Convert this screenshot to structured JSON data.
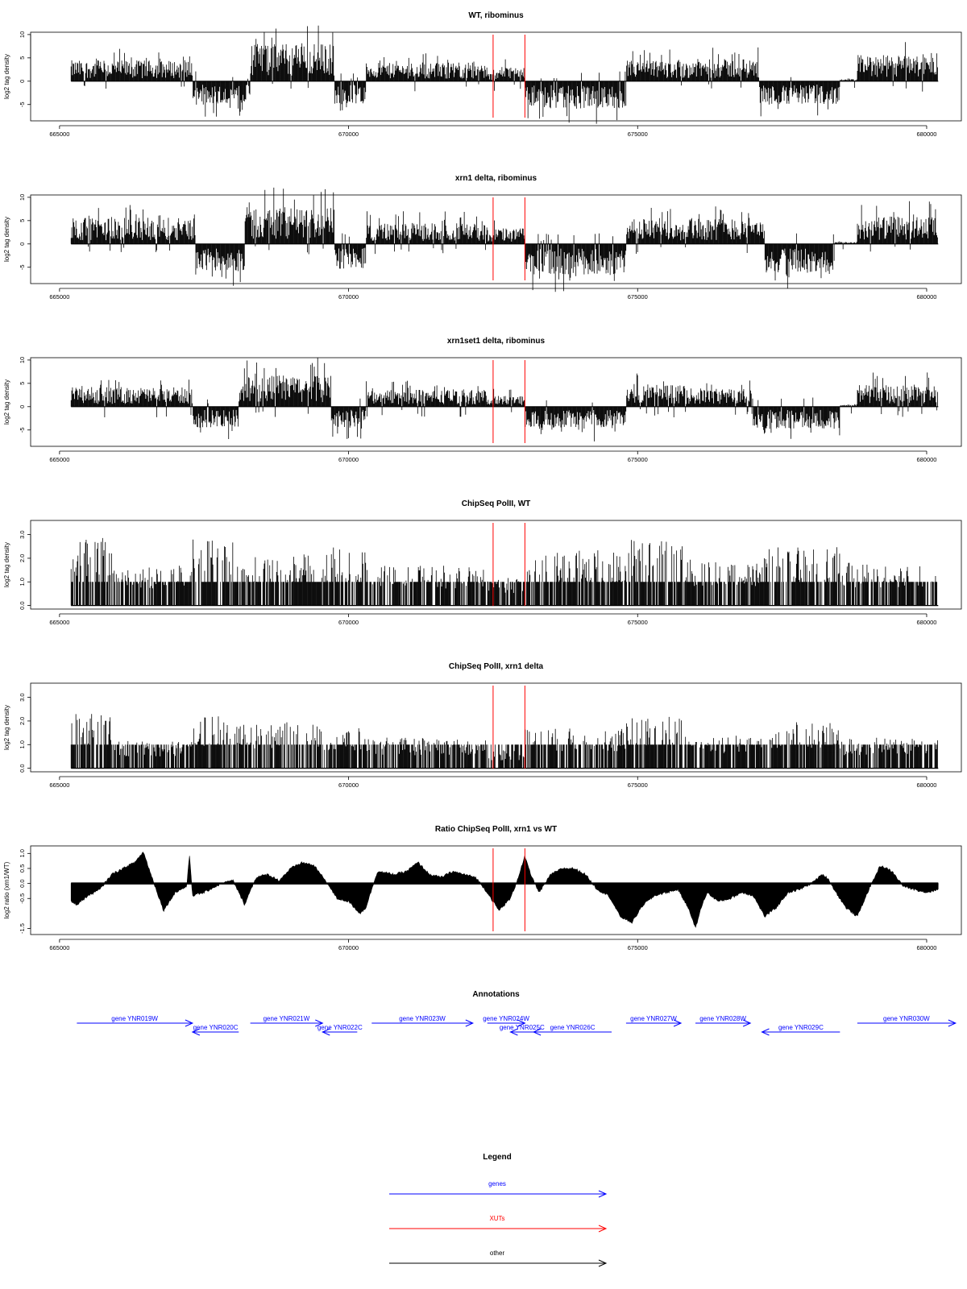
{
  "chart_data": [
    {
      "type": "bar",
      "title": "WT, ribominus",
      "ylabel": "log2 tag density",
      "ylim": [
        -8.5,
        10.5
      ],
      "yticks": [
        10,
        5,
        0,
        -5
      ],
      "xlim": [
        664500,
        680600
      ],
      "xticks": [
        "665000",
        "670000",
        "675000",
        "680000"
      ],
      "x_range": [
        665200,
        680200
      ],
      "markers": [
        672500,
        673050
      ],
      "series": [
        {
          "values": [
            [
              665200,
              667300,
              3.2
            ],
            [
              667300,
              668300,
              -3.6
            ],
            [
              668300,
              669750,
              5.8
            ],
            [
              669750,
              670300,
              -3.6
            ],
            [
              670300,
              672400,
              2.8
            ],
            [
              672400,
              672500,
              1.2
            ],
            [
              672500,
              673050,
              2.2
            ],
            [
              673050,
              674800,
              -4.2
            ],
            [
              674800,
              675800,
              3.2
            ],
            [
              675800,
              677100,
              3.4
            ],
            [
              677100,
              678500,
              -3.6
            ],
            [
              678500,
              678800,
              0.3
            ],
            [
              678800,
              680200,
              4.0
            ]
          ]
        }
      ]
    },
    {
      "type": "bar",
      "title": "xrn1 delta, ribominus",
      "ylabel": "log2 tag density",
      "ylim": [
        -8.5,
        10.5
      ],
      "yticks": [
        10,
        5,
        0,
        -5
      ],
      "xlim": [
        664500,
        680600
      ],
      "xticks": [
        "665000",
        "670000",
        "675000",
        "680000"
      ],
      "x_range": [
        665200,
        680200
      ],
      "markers": [
        672500,
        673050
      ],
      "series": [
        {
          "values": [
            [
              665200,
              667350,
              4.0
            ],
            [
              667350,
              668200,
              -4.2
            ],
            [
              668200,
              669750,
              5.5
            ],
            [
              669750,
              670300,
              -3.8
            ],
            [
              670300,
              672400,
              3.2
            ],
            [
              672400,
              672500,
              1.5
            ],
            [
              672500,
              673050,
              2.4
            ],
            [
              673050,
              674800,
              -4.8
            ],
            [
              674800,
              675800,
              4.0
            ],
            [
              675800,
              677200,
              4.0
            ],
            [
              677200,
              678400,
              -4.5
            ],
            [
              678400,
              678800,
              0.3
            ],
            [
              678800,
              680200,
              4.2
            ]
          ]
        }
      ]
    },
    {
      "type": "bar",
      "title": "xrn1set1 delta, ribominus",
      "ylabel": "log2 tag density",
      "ylim": [
        -8.5,
        10.5
      ],
      "yticks": [
        10,
        5,
        0,
        -5
      ],
      "xlim": [
        664500,
        680600
      ],
      "xticks": [
        "665000",
        "670000",
        "675000",
        "680000"
      ],
      "x_range": [
        665200,
        680200
      ],
      "markers": [
        672500,
        673050
      ],
      "series": [
        {
          "values": [
            [
              665200,
              667300,
              3.0
            ],
            [
              667300,
              668100,
              -3.2
            ],
            [
              668100,
              669700,
              4.8
            ],
            [
              669700,
              670300,
              -3.2
            ],
            [
              670300,
              672400,
              2.6
            ],
            [
              672400,
              672500,
              1.0
            ],
            [
              672500,
              673050,
              1.8
            ],
            [
              673050,
              674800,
              -3.6
            ],
            [
              674800,
              675800,
              3.4
            ],
            [
              675800,
              677000,
              2.8
            ],
            [
              677000,
              678500,
              -3.4
            ],
            [
              678500,
              678800,
              0.3
            ],
            [
              678800,
              680200,
              3.4
            ]
          ]
        }
      ]
    },
    {
      "type": "bar",
      "title": "ChipSeq PolII, WT",
      "ylabel": "log2 tag density",
      "ylim": [
        -0.15,
        3.6
      ],
      "yticks": [
        3.0,
        2.0,
        1.0,
        0.0
      ],
      "xlim": [
        664500,
        680600
      ],
      "xticks": [
        "665000",
        "670000",
        "675000",
        "680000"
      ],
      "x_range": [
        665200,
        680200
      ],
      "markers": [
        672500,
        673050
      ],
      "series": [
        {
          "values": [
            [
              665200,
              665900,
              2.2
            ],
            [
              665900,
              667300,
              1.3
            ],
            [
              667300,
              668100,
              2.2
            ],
            [
              668100,
              669500,
              1.7
            ],
            [
              669500,
              670300,
              1.9
            ],
            [
              670300,
              672400,
              1.3
            ],
            [
              672400,
              673050,
              0.9
            ],
            [
              673050,
              674800,
              1.8
            ],
            [
              674800,
              675800,
              2.2
            ],
            [
              675800,
              677100,
              1.5
            ],
            [
              677100,
              678500,
              1.9
            ],
            [
              678500,
              680200,
              1.4
            ]
          ]
        }
      ]
    },
    {
      "type": "bar",
      "title": "ChipSeq PolII, xrn1 delta",
      "ylabel": "log2 tag density",
      "ylim": [
        -0.15,
        3.6
      ],
      "yticks": [
        3.0,
        2.0,
        1.0,
        0.0
      ],
      "xlim": [
        664500,
        680600
      ],
      "xticks": [
        "665000",
        "670000",
        "675000",
        "680000"
      ],
      "x_range": [
        665200,
        680200
      ],
      "markers": [
        672500,
        673050
      ],
      "series": [
        {
          "values": [
            [
              665200,
              665900,
              1.8
            ],
            [
              665900,
              667300,
              0.9
            ],
            [
              667300,
              668100,
              1.7
            ],
            [
              668100,
              669500,
              1.5
            ],
            [
              669500,
              670300,
              1.3
            ],
            [
              670300,
              672400,
              1.0
            ],
            [
              672400,
              673050,
              0.6
            ],
            [
              673050,
              674800,
              1.3
            ],
            [
              674800,
              675800,
              1.7
            ],
            [
              675800,
              677100,
              1.1
            ],
            [
              677100,
              678500,
              1.5
            ],
            [
              678500,
              680200,
              1.0
            ]
          ]
        }
      ]
    },
    {
      "type": "area",
      "title": "Ratio ChipSeq PolII, xrn1 vs WT",
      "ylabel": "log2 ratio (xrn1/WT)",
      "ylim": [
        -1.7,
        1.25
      ],
      "yticks": [
        1.0,
        0.5,
        0.0,
        -0.5,
        -1.5
      ],
      "xlim": [
        664500,
        680600
      ],
      "xticks": [
        "665000",
        "670000",
        "675000",
        "680000"
      ],
      "x_range": [
        665200,
        680200
      ],
      "markers": [
        672500,
        673050
      ],
      "series": [
        {
          "x": [
            665200,
            665300,
            665500,
            665700,
            665900,
            666100,
            666300,
            666450,
            666600,
            666800,
            667000,
            667200,
            667250,
            667300,
            667500,
            667800,
            668000,
            668200,
            668400,
            668600,
            668800,
            669000,
            669200,
            669400,
            669600,
            669800,
            670000,
            670200,
            670300,
            670500,
            670800,
            671000,
            671200,
            671400,
            671600,
            671800,
            672000,
            672200,
            672400,
            672600,
            672800,
            672900,
            673050,
            673150,
            673300,
            673500,
            673700,
            673900,
            674100,
            674300,
            674500,
            674700,
            674900,
            675100,
            675300,
            675500,
            675700,
            675900,
            676000,
            676100,
            676200,
            676400,
            676600,
            676800,
            677000,
            677200,
            677400,
            677600,
            677800,
            678000,
            678200,
            678300,
            678400,
            678600,
            678800,
            679000,
            679200,
            679400,
            679600,
            679800,
            680000,
            680200
          ],
          "values": [
            -0.6,
            -0.7,
            -0.4,
            -0.2,
            0.3,
            0.5,
            0.7,
            1.05,
            0.2,
            -0.9,
            -0.3,
            -0.1,
            0.95,
            -0.4,
            -0.3,
            0.0,
            0.1,
            -0.7,
            0.2,
            0.3,
            0.1,
            0.5,
            0.7,
            0.6,
            0.1,
            -0.5,
            -0.6,
            -1.0,
            -0.8,
            0.4,
            0.3,
            0.4,
            0.7,
            0.3,
            0.2,
            0.4,
            0.3,
            0.2,
            -0.3,
            -0.9,
            -0.5,
            0.0,
            0.9,
            0.3,
            -0.3,
            0.3,
            0.5,
            0.5,
            0.3,
            -0.2,
            -0.4,
            -1.1,
            -1.3,
            -0.7,
            -0.4,
            -0.3,
            -0.2,
            -0.9,
            -1.5,
            -0.8,
            -0.3,
            -0.6,
            -0.5,
            -0.3,
            -0.4,
            -1.1,
            -0.8,
            -0.3,
            -0.2,
            0.0,
            0.3,
            0.15,
            -0.2,
            -0.8,
            -1.1,
            -0.2,
            0.6,
            0.4,
            -0.1,
            -0.2,
            -0.3,
            -0.2
          ]
        }
      ]
    }
  ],
  "annotations": {
    "title": "Annotations",
    "color": "#0000ff",
    "genes": [
      {
        "label": "gene YNR019W",
        "start": 665300,
        "end": 667300,
        "strand": "+",
        "row": 0
      },
      {
        "label": "gene YNR020C",
        "start": 667300,
        "end": 668100,
        "strand": "-",
        "row": 1
      },
      {
        "label": "gene YNR021W",
        "start": 668300,
        "end": 669550,
        "strand": "+",
        "row": 0
      },
      {
        "label": "gene YNR022C",
        "start": 669550,
        "end": 670150,
        "strand": "-",
        "row": 1
      },
      {
        "label": "gene YNR023W",
        "start": 670400,
        "end": 672150,
        "strand": "+",
        "row": 0
      },
      {
        "label": "gene YNR024W",
        "start": 672400,
        "end": 673050,
        "strand": "+",
        "row": 0
      },
      {
        "label": "gene YNR025C",
        "start": 672800,
        "end": 673200,
        "strand": "-",
        "row": 1
      },
      {
        "label": "gene YNR026C",
        "start": 673200,
        "end": 674550,
        "strand": "-",
        "row": 1
      },
      {
        "label": "gene YNR027W",
        "start": 674800,
        "end": 675750,
        "strand": "+",
        "row": 0
      },
      {
        "label": "gene YNR028W",
        "start": 676000,
        "end": 676950,
        "strand": "+",
        "row": 0
      },
      {
        "label": "gene YNR029C",
        "start": 677150,
        "end": 678500,
        "strand": "-",
        "row": 1
      },
      {
        "label": "gene YNR030W",
        "start": 678800,
        "end": 680500,
        "strand": "+",
        "row": 0
      }
    ]
  },
  "legend": {
    "title": "Legend",
    "items": [
      {
        "label": "genes",
        "color": "#0000ff"
      },
      {
        "label": "XUTs",
        "color": "#ff0000"
      },
      {
        "label": "other",
        "color": "#000000"
      }
    ]
  }
}
